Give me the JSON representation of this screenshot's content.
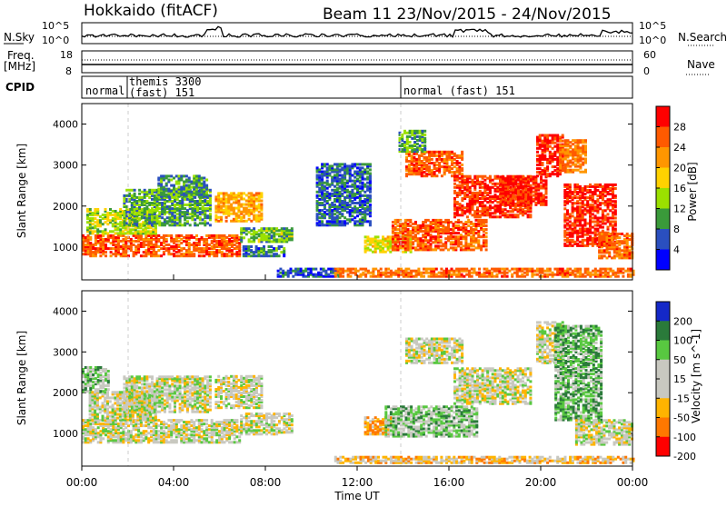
{
  "header": {
    "station": "Hokkaido (fitACF)",
    "beam_date": "Beam 11  23/Nov/2015 - 24/Nov/2015"
  },
  "noise_panel": {
    "left_label": "N.Sky",
    "right_label": "N.Search",
    "ticks_left": [
      "10^5",
      "10^0"
    ],
    "ticks_right": [
      "10^5",
      "10^0"
    ]
  },
  "freq_panel": {
    "left_label_1": "Freq.",
    "left_label_2": "[MHz]",
    "left_ticks": [
      "18",
      "8"
    ],
    "right_label": "Nave",
    "right_ticks": [
      "60",
      "0"
    ]
  },
  "cpid_panel": {
    "label": "CPID",
    "segments": [
      {
        "text": "normal",
        "x_hour": 0
      },
      {
        "text": "themis 3300",
        "x_hour": 2
      },
      {
        "text": "(fast) 151",
        "x_hour": 2
      },
      {
        "text": "normal (fast) 151",
        "x_hour": 14
      }
    ]
  },
  "chart_data": [
    {
      "type": "heatmap",
      "title": "Power",
      "ylabel": "Slant Range [km]",
      "colorbar_label": "Power [dB]",
      "colorbar_ticks": [
        "28",
        "24",
        "20",
        "16",
        "12",
        "8",
        "4"
      ],
      "colors": [
        "#ff0000",
        "#ff5a00",
        "#ff9600",
        "#ffd200",
        "#9be000",
        "#3a9a3a",
        "#2a4fbf",
        "#0000ff"
      ],
      "yticks": [
        "4000",
        "3000",
        "2000",
        "1000"
      ],
      "ylim": [
        200,
        4500
      ],
      "xlim": [
        0,
        24
      ],
      "blobs": [
        {
          "t0": 0.0,
          "t1": 6.9,
          "r0": 750,
          "r1": 1250,
          "v": 24
        },
        {
          "t0": 0.2,
          "t1": 3.2,
          "r0": 1300,
          "r1": 1900,
          "v": 13
        },
        {
          "t0": 1.8,
          "t1": 5.6,
          "r0": 1500,
          "r1": 2400,
          "v": 10
        },
        {
          "t0": 3.3,
          "t1": 5.5,
          "r0": 2200,
          "r1": 2700,
          "v": 9
        },
        {
          "t0": 5.8,
          "t1": 7.8,
          "r0": 1600,
          "r1": 2300,
          "v": 19
        },
        {
          "t0": 6.9,
          "t1": 9.1,
          "r0": 1100,
          "r1": 1450,
          "v": 11
        },
        {
          "t0": 7.0,
          "t1": 8.8,
          "r0": 750,
          "r1": 1000,
          "v": 8
        },
        {
          "t0": 8.5,
          "t1": 11.2,
          "r0": 250,
          "r1": 450,
          "v": 6
        },
        {
          "t0": 10.2,
          "t1": 12.6,
          "r0": 1500,
          "r1": 3000,
          "v": 7
        },
        {
          "t0": 12.3,
          "t1": 14.3,
          "r0": 850,
          "r1": 1250,
          "v": 15
        },
        {
          "t0": 14.1,
          "t1": 16.6,
          "r0": 2700,
          "r1": 3300,
          "v": 24
        },
        {
          "t0": 13.8,
          "t1": 15.0,
          "r0": 3300,
          "r1": 3800,
          "v": 10
        },
        {
          "t0": 13.5,
          "t1": 17.6,
          "r0": 900,
          "r1": 1650,
          "v": 24
        },
        {
          "t0": 16.2,
          "t1": 19.5,
          "r0": 1700,
          "r1": 2700,
          "v": 26
        },
        {
          "t0": 18.2,
          "t1": 20.2,
          "r0": 2000,
          "r1": 2700,
          "v": 27
        },
        {
          "t0": 19.8,
          "t1": 21.0,
          "r0": 2700,
          "r1": 3700,
          "v": 27
        },
        {
          "t0": 21.0,
          "t1": 23.2,
          "r0": 1000,
          "r1": 2500,
          "v": 27
        },
        {
          "t0": 22.5,
          "t1": 24.0,
          "r0": 700,
          "r1": 1300,
          "v": 23
        },
        {
          "t0": 20.8,
          "t1": 22.0,
          "r0": 2800,
          "r1": 3600,
          "v": 22
        },
        {
          "t0": 11.0,
          "t1": 24.0,
          "r0": 250,
          "r1": 450,
          "v": 23
        }
      ]
    },
    {
      "type": "heatmap",
      "title": "Velocity",
      "ylabel": "Slant Range [km]",
      "colorbar_label": "Velocity [m s^-1]",
      "colorbar_ticks": [
        "200",
        "100",
        "50",
        "15",
        "-15",
        "-50",
        "-100",
        "-200"
      ],
      "colors": [
        "#1428c8",
        "#2a7a3a",
        "#58c840",
        "#c8c8c0",
        "#c8c8c0",
        "#ffb400",
        "#ff7800",
        "#ff0000"
      ],
      "yticks": [
        "4000",
        "3000",
        "2000",
        "1000"
      ],
      "ylim": [
        200,
        4500
      ],
      "xlim": [
        0,
        24
      ],
      "blobs": [
        {
          "t0": 0.0,
          "t1": 6.9,
          "r0": 750,
          "r1": 1300,
          "v": 0
        },
        {
          "t0": 0.3,
          "t1": 3.2,
          "r0": 1300,
          "r1": 2000,
          "v": 0
        },
        {
          "t0": 1.8,
          "t1": 5.6,
          "r0": 1500,
          "r1": 2400,
          "v": 0
        },
        {
          "t0": 5.8,
          "t1": 7.8,
          "r0": 1600,
          "r1": 2400,
          "v": 0
        },
        {
          "t0": 6.9,
          "t1": 9.1,
          "r0": 950,
          "r1": 1450,
          "v": 0
        },
        {
          "t0": 12.3,
          "t1": 13.5,
          "r0": 950,
          "r1": 1400,
          "v": -60
        },
        {
          "t0": 13.2,
          "t1": 17.2,
          "r0": 900,
          "r1": 1650,
          "v": 40
        },
        {
          "t0": 14.1,
          "t1": 16.6,
          "r0": 2700,
          "r1": 3300,
          "v": 0
        },
        {
          "t0": 16.2,
          "t1": 19.5,
          "r0": 1700,
          "r1": 2600,
          "v": 0
        },
        {
          "t0": 19.8,
          "t1": 21.0,
          "r0": 2700,
          "r1": 3700,
          "v": 0
        },
        {
          "t0": 20.6,
          "t1": 22.6,
          "r0": 1300,
          "r1": 3600,
          "v": 60
        },
        {
          "t0": 21.5,
          "t1": 24.0,
          "r0": 700,
          "r1": 1300,
          "v": 0
        },
        {
          "t0": 11.0,
          "t1": 24.0,
          "r0": 250,
          "r1": 400,
          "v": -40
        },
        {
          "t0": 0.0,
          "t1": 1.2,
          "r0": 2000,
          "r1": 2600,
          "v": 40
        }
      ]
    }
  ],
  "time_axis": {
    "xlabel": "Time UT",
    "ticks": [
      "00:00",
      "04:00",
      "08:00",
      "12:00",
      "16:00",
      "20:00",
      "00:00"
    ]
  }
}
